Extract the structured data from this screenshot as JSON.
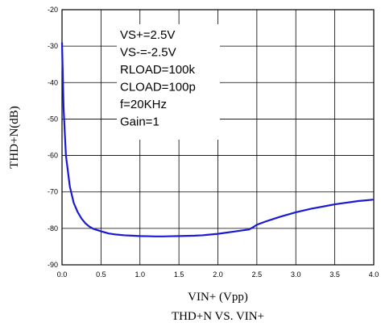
{
  "chart_data": {
    "type": "line",
    "title": "THD+N VS. VIN+",
    "xlabel": "VIN+ (Vpp)",
    "ylabel": "THD+N(dB)",
    "xlim": [
      0.0,
      4.0
    ],
    "ylim": [
      -90,
      -20
    ],
    "x_ticks": [
      "0.0",
      "0.5",
      "1.0",
      "1.5",
      "2.0",
      "2.5",
      "3.0",
      "3.5",
      "4.0"
    ],
    "y_ticks": [
      "-20",
      "-30",
      "-40",
      "-50",
      "-60",
      "-70",
      "-80",
      "-90"
    ],
    "grid": true,
    "annotations": [
      "VS+=2.5V",
      "VS-=-2.5V",
      "RLOAD=100k",
      "CLOAD=100p",
      "f=20KHz",
      "Gain=1"
    ],
    "line_color": "#1a1ad6",
    "series": [
      {
        "x": [
          0.0,
          0.02,
          0.05,
          0.1,
          0.15,
          0.2,
          0.25,
          0.3,
          0.35,
          0.4,
          0.5,
          0.6,
          0.7,
          0.8,
          0.9,
          1.0,
          1.1,
          1.2,
          1.3,
          1.4,
          1.5,
          1.6,
          1.7,
          1.8,
          1.9,
          2.0,
          2.1,
          2.2,
          2.3,
          2.4,
          2.45,
          2.5,
          2.6,
          2.7,
          2.8,
          2.9,
          3.0,
          3.1,
          3.2,
          3.3,
          3.4,
          3.5,
          3.6,
          3.7,
          3.8,
          3.9,
          4.0
        ],
        "y": [
          -29,
          -47,
          -60,
          -68.5,
          -73,
          -75.5,
          -77.3,
          -78.6,
          -79.5,
          -80.1,
          -80.8,
          -81.4,
          -81.7,
          -81.9,
          -82.0,
          -82.1,
          -82.15,
          -82.2,
          -82.2,
          -82.15,
          -82.1,
          -82.05,
          -82.0,
          -81.9,
          -81.7,
          -81.5,
          -81.2,
          -80.9,
          -80.6,
          -80.3,
          -79.7,
          -79.0,
          -78.2,
          -77.5,
          -76.8,
          -76.2,
          -75.6,
          -75.1,
          -74.6,
          -74.2,
          -73.8,
          -73.4,
          -73.1,
          -72.8,
          -72.5,
          -72.3,
          -72.1
        ]
      }
    ]
  }
}
